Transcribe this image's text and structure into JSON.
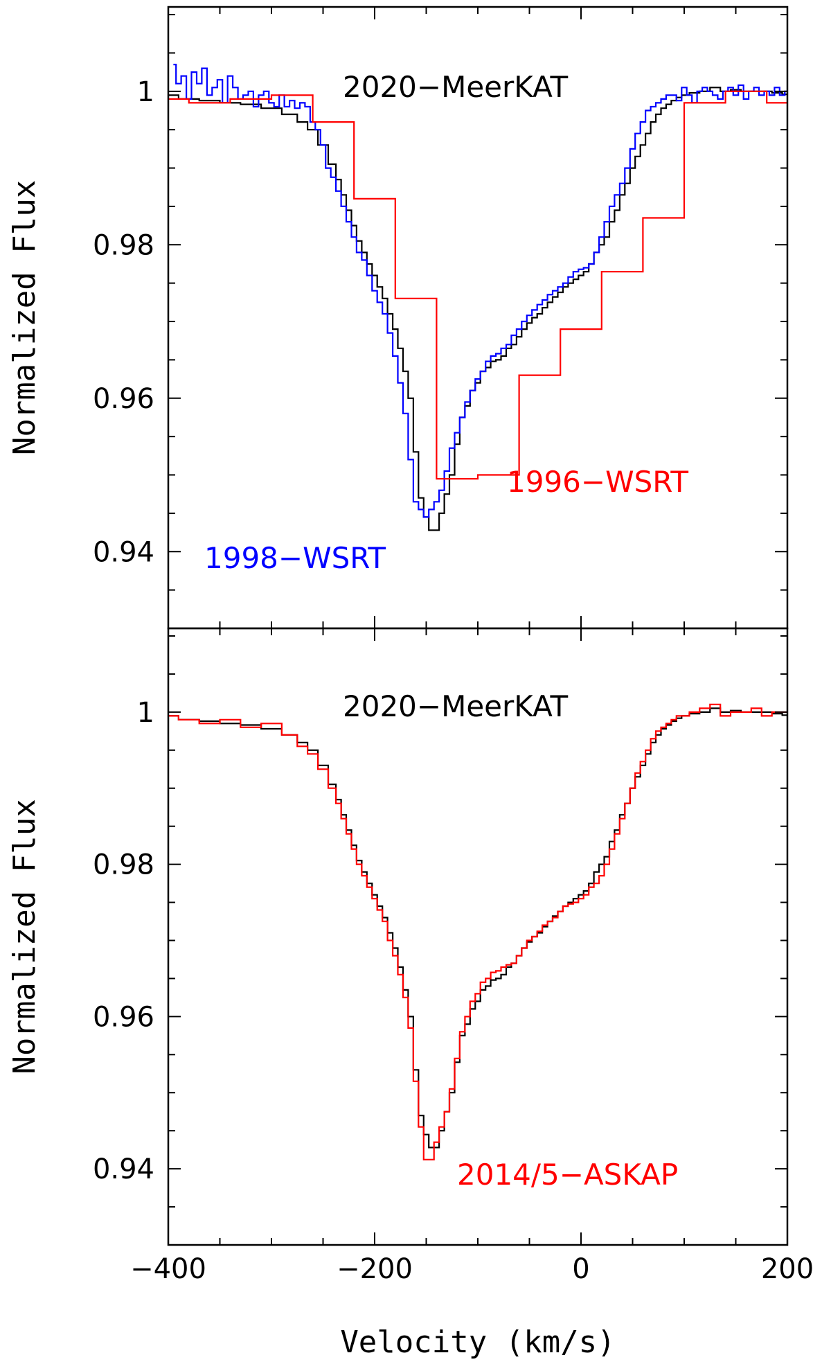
{
  "chart_data": [
    {
      "type": "line",
      "title": "",
      "xlabel": "Velocity (km/s)",
      "ylabel": "Normalized Flux",
      "xlim": [
        -400,
        200
      ],
      "ylim": [
        0.93,
        1.011
      ],
      "xticks": [
        -400,
        -200,
        0,
        200
      ],
      "xtick_labels": [
        "",
        "",
        "",
        ""
      ],
      "yticks": [
        0.94,
        0.96,
        0.98,
        1.0
      ],
      "ytick_labels": [
        "0.94",
        "0.96",
        "0.98",
        "1"
      ],
      "annotations": [
        "2020−MeerKAT",
        "1998−WSRT",
        "1996−WSRT"
      ],
      "series": [
        {
          "name": "2020-MeerKAT",
          "color": "#000000",
          "x": [
            -400,
            -380,
            -360,
            -340,
            -320,
            -300,
            -280,
            -270,
            -260,
            -250,
            -240,
            -235,
            -230,
            -225,
            -220,
            -215,
            -210,
            -205,
            -200,
            -195,
            -190,
            -185,
            -180,
            -175,
            -170,
            -165,
            -160,
            -155,
            -150,
            -145,
            -140,
            -135,
            -130,
            -125,
            -120,
            -115,
            -110,
            -105,
            -100,
            -95,
            -90,
            -85,
            -80,
            -75,
            -70,
            -65,
            -60,
            -55,
            -50,
            -45,
            -40,
            -35,
            -30,
            -25,
            -20,
            -15,
            -10,
            -5,
            0,
            5,
            10,
            15,
            20,
            25,
            30,
            35,
            40,
            45,
            50,
            55,
            60,
            65,
            70,
            75,
            80,
            85,
            90,
            95,
            100,
            110,
            120,
            130,
            140,
            150,
            160,
            170,
            180,
            190,
            200
          ],
          "y": [
            0.9995,
            0.999,
            0.9988,
            0.9985,
            0.9983,
            0.9978,
            0.997,
            0.996,
            0.995,
            0.993,
            0.9905,
            0.9885,
            0.9865,
            0.9845,
            0.9825,
            0.9805,
            0.979,
            0.9775,
            0.976,
            0.9745,
            0.973,
            0.971,
            0.969,
            0.9665,
            0.9635,
            0.96,
            0.953,
            0.947,
            0.9445,
            0.9428,
            0.9428,
            0.945,
            0.9475,
            0.95,
            0.954,
            0.9575,
            0.959,
            0.961,
            0.962,
            0.9635,
            0.964,
            0.9648,
            0.965,
            0.9655,
            0.9665,
            0.967,
            0.968,
            0.969,
            0.9698,
            0.9705,
            0.971,
            0.9718,
            0.9725,
            0.9732,
            0.9738,
            0.9745,
            0.975,
            0.9755,
            0.976,
            0.9765,
            0.9775,
            0.979,
            0.98,
            0.981,
            0.983,
            0.9845,
            0.9865,
            0.988,
            0.99,
            0.9915,
            0.993,
            0.9945,
            0.996,
            0.997,
            0.9978,
            0.9983,
            0.9988,
            0.9992,
            0.9995,
            0.9998,
            1.0,
            1.0005,
            1.0,
            1.0002,
            1.0,
            1.0,
            1.0,
            0.9998,
            0.9996
          ]
        },
        {
          "name": "1998-WSRT",
          "color": "#0000ff",
          "x": [
            -395,
            -390,
            -385,
            -380,
            -375,
            -370,
            -365,
            -360,
            -355,
            -350,
            -345,
            -340,
            -335,
            -330,
            -325,
            -320,
            -315,
            -310,
            -305,
            -300,
            -295,
            -290,
            -285,
            -280,
            -275,
            -270,
            -265,
            -260,
            -255,
            -250,
            -245,
            -240,
            -235,
            -230,
            -225,
            -220,
            -215,
            -210,
            -205,
            -200,
            -195,
            -190,
            -185,
            -180,
            -175,
            -170,
            -165,
            -160,
            -155,
            -150,
            -145,
            -140,
            -135,
            -130,
            -125,
            -120,
            -115,
            -110,
            -105,
            -100,
            -95,
            -90,
            -85,
            -80,
            -75,
            -70,
            -65,
            -60,
            -55,
            -50,
            -45,
            -40,
            -35,
            -30,
            -25,
            -20,
            -15,
            -10,
            -5,
            0,
            5,
            10,
            15,
            20,
            25,
            30,
            35,
            40,
            45,
            50,
            55,
            60,
            65,
            70,
            75,
            80,
            85,
            90,
            95,
            100,
            105,
            110,
            115,
            120,
            125,
            130,
            135,
            140,
            145,
            150,
            155,
            160,
            165,
            170,
            175,
            180,
            185,
            190,
            195,
            200
          ],
          "y": [
            1.0035,
            1.001,
            1.002,
            0.999,
            1.0025,
            1.001,
            1.003,
            0.9995,
            1.0005,
            1.0015,
            0.9985,
            1.002,
            1.0005,
            0.999,
            0.9995,
            1.0,
            0.998,
            0.9995,
            1.0,
            0.9985,
            0.998,
            0.9995,
            0.998,
            0.9988,
            0.9978,
            0.9985,
            0.998,
            0.996,
            0.995,
            0.993,
            0.99,
            0.9888,
            0.987,
            0.985,
            0.983,
            0.981,
            0.979,
            0.978,
            0.976,
            0.974,
            0.9725,
            0.971,
            0.9685,
            0.9655,
            0.962,
            0.958,
            0.952,
            0.9465,
            0.9455,
            0.9445,
            0.9455,
            0.9465,
            0.948,
            0.9505,
            0.9535,
            0.9555,
            0.9575,
            0.9595,
            0.961,
            0.9625,
            0.9635,
            0.9648,
            0.9655,
            0.9658,
            0.9665,
            0.967,
            0.9682,
            0.969,
            0.97,
            0.9708,
            0.9715,
            0.9722,
            0.9728,
            0.9735,
            0.974,
            0.9745,
            0.975,
            0.9758,
            0.9765,
            0.9768,
            0.977,
            0.9775,
            0.979,
            0.981,
            0.983,
            0.985,
            0.9865,
            0.988,
            0.99,
            0.9925,
            0.9945,
            0.996,
            0.9975,
            0.998,
            0.9985,
            0.999,
            0.9995,
            0.9995,
            0.9988,
            1.0005,
            0.9995,
            0.9985,
            1.0,
            1.0005,
            1.0,
            0.9995,
            0.999,
            1.0,
            1.0005,
            0.9995,
            1.0008,
            0.999,
            1.0,
            1.0005,
            0.9995,
            1.0,
            0.9995,
            1.0005,
            0.9995,
            1.0
          ]
        },
        {
          "name": "1996-WSRT",
          "color": "#ff0000",
          "x": [
            -400,
            -360,
            -320,
            -280,
            -240,
            -200,
            -160,
            -120,
            -80,
            -40,
            0,
            40,
            80,
            120,
            160,
            200
          ],
          "y": [
            0.999,
            0.9985,
            0.999,
            0.9995,
            0.996,
            0.986,
            0.973,
            0.9495,
            0.95,
            0.963,
            0.969,
            0.9765,
            0.9835,
            0.9985,
            1.0,
            0.9985
          ]
        }
      ]
    },
    {
      "type": "line",
      "title": "",
      "xlabel": "Velocity (km/s)",
      "ylabel": "Normalized Flux",
      "xlim": [
        -400,
        200
      ],
      "ylim": [
        0.93,
        1.011
      ],
      "xticks": [
        -400,
        -200,
        0,
        200
      ],
      "xtick_labels": [
        "−400",
        "−200",
        "0",
        "200"
      ],
      "yticks": [
        0.94,
        0.96,
        0.98,
        1.0
      ],
      "ytick_labels": [
        "0.94",
        "0.96",
        "0.98",
        "1"
      ],
      "annotations": [
        "2020−MeerKAT",
        "2014/5−ASKAP"
      ],
      "series": [
        {
          "name": "2020-MeerKAT",
          "color": "#000000",
          "x": [
            -400,
            -380,
            -360,
            -340,
            -320,
            -300,
            -280,
            -270,
            -260,
            -250,
            -240,
            -235,
            -230,
            -225,
            -220,
            -215,
            -210,
            -205,
            -200,
            -195,
            -190,
            -185,
            -180,
            -175,
            -170,
            -165,
            -160,
            -155,
            -150,
            -145,
            -140,
            -135,
            -130,
            -125,
            -120,
            -115,
            -110,
            -105,
            -100,
            -95,
            -90,
            -85,
            -80,
            -75,
            -70,
            -65,
            -60,
            -55,
            -50,
            -45,
            -40,
            -35,
            -30,
            -25,
            -20,
            -15,
            -10,
            -5,
            0,
            5,
            10,
            15,
            20,
            25,
            30,
            35,
            40,
            45,
            50,
            55,
            60,
            65,
            70,
            75,
            80,
            85,
            90,
            95,
            100,
            110,
            120,
            130,
            140,
            150,
            160,
            170,
            180,
            190,
            200
          ],
          "y": [
            0.9995,
            0.999,
            0.9988,
            0.9985,
            0.9983,
            0.9978,
            0.997,
            0.996,
            0.995,
            0.993,
            0.9905,
            0.9885,
            0.9865,
            0.9845,
            0.9825,
            0.9805,
            0.979,
            0.9775,
            0.976,
            0.9745,
            0.973,
            0.971,
            0.969,
            0.9665,
            0.9635,
            0.96,
            0.953,
            0.947,
            0.9445,
            0.9428,
            0.9428,
            0.945,
            0.9475,
            0.95,
            0.954,
            0.9575,
            0.959,
            0.961,
            0.962,
            0.9635,
            0.964,
            0.9648,
            0.965,
            0.9655,
            0.9665,
            0.967,
            0.968,
            0.969,
            0.9698,
            0.9705,
            0.971,
            0.9718,
            0.9725,
            0.9732,
            0.9738,
            0.9745,
            0.975,
            0.9755,
            0.976,
            0.9765,
            0.9775,
            0.979,
            0.98,
            0.981,
            0.983,
            0.9845,
            0.9865,
            0.988,
            0.99,
            0.9915,
            0.993,
            0.9945,
            0.996,
            0.997,
            0.9978,
            0.9983,
            0.9988,
            0.9992,
            0.9995,
            0.9998,
            1.0,
            1.0005,
            1.0,
            1.0002,
            1.0,
            1.0,
            1.0,
            0.9998,
            0.9996
          ]
        },
        {
          "name": "2014/5-ASKAP",
          "color": "#ff0000",
          "x": [
            -400,
            -380,
            -360,
            -340,
            -320,
            -300,
            -280,
            -270,
            -260,
            -250,
            -240,
            -235,
            -230,
            -225,
            -220,
            -215,
            -210,
            -205,
            -200,
            -195,
            -190,
            -185,
            -180,
            -175,
            -170,
            -165,
            -160,
            -155,
            -150,
            -145,
            -140,
            -135,
            -130,
            -125,
            -120,
            -115,
            -110,
            -105,
            -100,
            -95,
            -90,
            -85,
            -80,
            -75,
            -70,
            -65,
            -60,
            -55,
            -50,
            -45,
            -40,
            -35,
            -30,
            -25,
            -20,
            -15,
            -10,
            -5,
            0,
            5,
            10,
            15,
            20,
            25,
            30,
            35,
            40,
            45,
            50,
            55,
            60,
            65,
            70,
            75,
            80,
            85,
            90,
            95,
            100,
            110,
            120,
            130,
            140,
            150,
            160,
            170,
            180,
            190,
            200
          ],
          "y": [
            0.9995,
            0.999,
            0.9985,
            0.999,
            0.998,
            0.9985,
            0.997,
            0.9955,
            0.9945,
            0.9925,
            0.99,
            0.988,
            0.986,
            0.984,
            0.982,
            0.98,
            0.9785,
            0.977,
            0.9755,
            0.974,
            0.9725,
            0.97,
            0.968,
            0.9655,
            0.9625,
            0.9585,
            0.9515,
            0.9455,
            0.9412,
            0.9412,
            0.9435,
            0.9455,
            0.9475,
            0.9505,
            0.9545,
            0.958,
            0.96,
            0.962,
            0.963,
            0.9645,
            0.965,
            0.9658,
            0.966,
            0.9665,
            0.9668,
            0.967,
            0.968,
            0.969,
            0.97,
            0.9705,
            0.9712,
            0.972,
            0.9725,
            0.973,
            0.9738,
            0.9745,
            0.9748,
            0.975,
            0.9755,
            0.976,
            0.977,
            0.9775,
            0.9785,
            0.98,
            0.982,
            0.984,
            0.986,
            0.988,
            0.99,
            0.992,
            0.9935,
            0.995,
            0.9965,
            0.9975,
            0.998,
            0.9985,
            0.999,
            0.9995,
            0.9995,
            1.0,
            1.0005,
            1.001,
            0.9995,
            1.0,
            1.0,
            1.0005,
            0.9995,
            1.0,
            1.0
          ]
        }
      ]
    }
  ]
}
